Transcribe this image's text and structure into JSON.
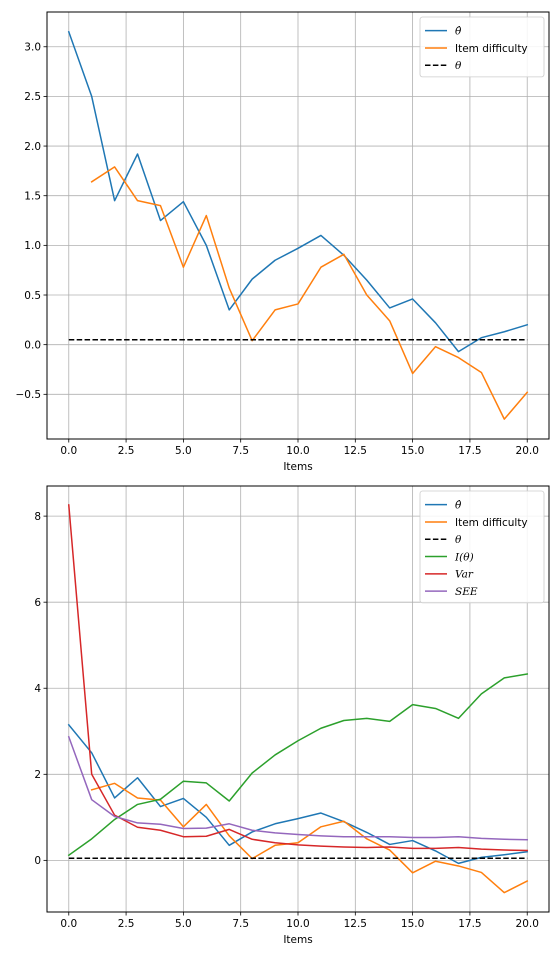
{
  "chart_data": [
    {
      "type": "line",
      "xlabel": "Items",
      "xlim": [
        -0.95,
        20.95
      ],
      "ylim": [
        -0.95,
        3.35
      ],
      "xticks": [
        "0.0",
        "2.5",
        "5.0",
        "7.5",
        "10.0",
        "12.5",
        "15.0",
        "17.5",
        "20.0"
      ],
      "yticks": [
        "−0.5",
        "0.0",
        "0.5",
        "1.0",
        "1.5",
        "2.0",
        "2.5",
        "3.0"
      ],
      "grid": true,
      "legend_position": "upper right",
      "series": [
        {
          "name": "θ̂",
          "color": "#1f77b4",
          "style": "solid",
          "x": [
            0,
            1,
            2,
            3,
            4,
            5,
            6,
            7,
            8,
            9,
            10,
            11,
            12,
            13,
            14,
            15,
            16,
            17,
            18,
            19,
            20
          ],
          "y": [
            3.15,
            2.5,
            1.45,
            1.92,
            1.25,
            1.44,
            1.0,
            0.35,
            0.66,
            0.85,
            0.97,
            1.1,
            0.9,
            0.65,
            0.37,
            0.46,
            0.22,
            -0.07,
            0.07,
            0.13,
            0.2
          ]
        },
        {
          "name": "Item difficulty",
          "color": "#ff7f0e",
          "style": "solid",
          "x": [
            1,
            2,
            3,
            4,
            5,
            6,
            7,
            8,
            9,
            10,
            11,
            12,
            13,
            14,
            15,
            16,
            17,
            18,
            19,
            20
          ],
          "y": [
            1.64,
            1.79,
            1.45,
            1.4,
            0.78,
            1.3,
            0.57,
            0.04,
            0.35,
            0.41,
            0.78,
            0.91,
            0.5,
            0.24,
            -0.29,
            -0.02,
            -0.13,
            -0.28,
            -0.75,
            -0.48
          ]
        },
        {
          "name": "θ",
          "color": "#000000",
          "style": "dashed",
          "x": [
            0,
            20
          ],
          "y": [
            0.05,
            0.05
          ]
        }
      ]
    },
    {
      "type": "line",
      "xlabel": "Items",
      "xlim": [
        -0.95,
        20.95
      ],
      "ylim": [
        -1.2,
        8.7
      ],
      "xticks": [
        "0.0",
        "2.5",
        "5.0",
        "7.5",
        "10.0",
        "12.5",
        "15.0",
        "17.5",
        "20.0"
      ],
      "yticks": [
        "0",
        "2",
        "4",
        "6",
        "8"
      ],
      "grid": true,
      "legend_position": "upper right",
      "series": [
        {
          "name": "θ̂",
          "color": "#1f77b4",
          "style": "solid",
          "x": [
            0,
            1,
            2,
            3,
            4,
            5,
            6,
            7,
            8,
            9,
            10,
            11,
            12,
            13,
            14,
            15,
            16,
            17,
            18,
            19,
            20
          ],
          "y": [
            3.15,
            2.5,
            1.45,
            1.92,
            1.25,
            1.44,
            1.0,
            0.35,
            0.66,
            0.85,
            0.97,
            1.1,
            0.9,
            0.65,
            0.37,
            0.46,
            0.22,
            -0.07,
            0.07,
            0.13,
            0.2
          ]
        },
        {
          "name": "Item difficulty",
          "color": "#ff7f0e",
          "style": "solid",
          "x": [
            1,
            2,
            3,
            4,
            5,
            6,
            7,
            8,
            9,
            10,
            11,
            12,
            13,
            14,
            15,
            16,
            17,
            18,
            19,
            20
          ],
          "y": [
            1.64,
            1.79,
            1.45,
            1.4,
            0.78,
            1.3,
            0.57,
            0.04,
            0.35,
            0.41,
            0.78,
            0.91,
            0.5,
            0.24,
            -0.29,
            -0.02,
            -0.13,
            -0.28,
            -0.75,
            -0.48
          ]
        },
        {
          "name": "θ",
          "color": "#000000",
          "style": "dashed",
          "x": [
            0,
            20
          ],
          "y": [
            0.05,
            0.05
          ]
        },
        {
          "name": "I(θ)",
          "color": "#2ca02c",
          "style": "solid",
          "x": [
            0,
            1,
            2,
            3,
            4,
            5,
            6,
            7,
            8,
            9,
            10,
            11,
            12,
            13,
            14,
            15,
            16,
            17,
            18,
            19,
            20
          ],
          "y": [
            0.12,
            0.5,
            0.95,
            1.3,
            1.42,
            1.84,
            1.8,
            1.38,
            2.03,
            2.45,
            2.78,
            3.07,
            3.25,
            3.3,
            3.23,
            3.62,
            3.53,
            3.3,
            3.87,
            4.24,
            4.33
          ]
        },
        {
          "name": "Var",
          "color": "#d62728",
          "style": "solid",
          "x": [
            0,
            1,
            2,
            3,
            4,
            5,
            6,
            7,
            8,
            9,
            10,
            11,
            12,
            13,
            14,
            15,
            16,
            17,
            18,
            19,
            20
          ],
          "y": [
            8.26,
            2.0,
            1.05,
            0.77,
            0.7,
            0.55,
            0.56,
            0.72,
            0.49,
            0.41,
            0.36,
            0.33,
            0.31,
            0.3,
            0.31,
            0.28,
            0.28,
            0.3,
            0.26,
            0.24,
            0.23
          ]
        },
        {
          "name": "SEE",
          "color": "#9467bd",
          "style": "solid",
          "x": [
            0,
            1,
            2,
            3,
            4,
            5,
            6,
            7,
            8,
            9,
            10,
            11,
            12,
            13,
            14,
            15,
            16,
            17,
            18,
            19,
            20
          ],
          "y": [
            2.87,
            1.41,
            1.02,
            0.87,
            0.84,
            0.74,
            0.75,
            0.85,
            0.7,
            0.64,
            0.6,
            0.57,
            0.55,
            0.55,
            0.55,
            0.53,
            0.53,
            0.55,
            0.51,
            0.49,
            0.48
          ]
        }
      ]
    }
  ]
}
